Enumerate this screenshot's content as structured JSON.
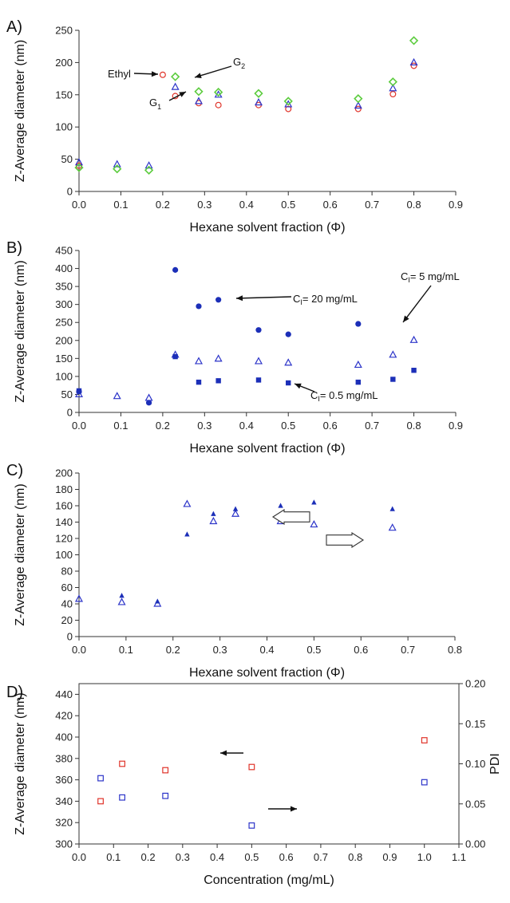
{
  "chart_data": [
    {
      "panel_label": "A)",
      "type": "scatter",
      "xlabel": "Hexane solvent fraction (Φ)",
      "ylabel": "Z-Average diameter (nm)",
      "xlim": [
        0,
        0.9
      ],
      "ylim": [
        0,
        250
      ],
      "x_ticks": [
        "0.0",
        "0.1",
        "0.2",
        "0.3",
        "0.4",
        "0.5",
        "0.6",
        "0.7",
        "0.8",
        "0.9"
      ],
      "y_ticks": [
        "0",
        "50",
        "100",
        "150",
        "200",
        "250"
      ],
      "annotations": [
        "Ethyl",
        "G",
        "1",
        "G",
        "2"
      ],
      "series": [
        {
          "marker": "open-circle",
          "color": "#e0342a",
          "points": [
            [
              0.0,
              40
            ],
            [
              0.2,
              181
            ],
            [
              0.23,
              148
            ],
            [
              0.286,
              137
            ],
            [
              0.333,
              134
            ],
            [
              0.429,
              134
            ],
            [
              0.5,
              128
            ],
            [
              0.667,
              128
            ],
            [
              0.75,
              151
            ],
            [
              0.8,
              195
            ]
          ]
        },
        {
          "marker": "open-triangle",
          "color": "#2d35c9",
          "points": [
            [
              0.0,
              45
            ],
            [
              0.091,
              42
            ],
            [
              0.167,
              40
            ],
            [
              0.23,
              162
            ],
            [
              0.286,
              140
            ],
            [
              0.333,
              150
            ],
            [
              0.429,
              138
            ],
            [
              0.5,
              135
            ],
            [
              0.667,
              133
            ],
            [
              0.75,
              160
            ],
            [
              0.8,
              200
            ]
          ]
        },
        {
          "marker": "open-diamond",
          "color": "#5ccc3e",
          "points": [
            [
              0.0,
              37
            ],
            [
              0.091,
              35
            ],
            [
              0.167,
              33
            ],
            [
              0.23,
              178
            ],
            [
              0.286,
              155
            ],
            [
              0.333,
              154
            ],
            [
              0.429,
              152
            ],
            [
              0.5,
              140
            ],
            [
              0.667,
              144
            ],
            [
              0.75,
              170
            ],
            [
              0.8,
              234
            ]
          ]
        }
      ]
    },
    {
      "panel_label": "B)",
      "type": "scatter",
      "xlabel": "Hexane solvent fraction (Φ)",
      "ylabel": "Z-Average diameter (nm)",
      "xlim": [
        0,
        0.9
      ],
      "ylim": [
        0,
        450
      ],
      "x_ticks": [
        "0.0",
        "0.1",
        "0.2",
        "0.3",
        "0.4",
        "0.5",
        "0.6",
        "0.7",
        "0.8",
        "0.9"
      ],
      "y_ticks": [
        "0",
        "50",
        "100",
        "150",
        "200",
        "250",
        "300",
        "350",
        "400",
        "450"
      ],
      "annotations": [
        "C",
        "I",
        "= 20 mg/mL",
        "C",
        "I",
        "= 5 mg/mL",
        "C",
        "I",
        "= 0.5 mg/mL"
      ],
      "series": [
        {
          "marker": "filled-circle",
          "color": "#1c2fb8",
          "points": [
            [
              0.0,
              58
            ],
            [
              0.167,
              27
            ],
            [
              0.23,
              396
            ],
            [
              0.286,
              295
            ],
            [
              0.333,
              313
            ],
            [
              0.429,
              229
            ],
            [
              0.5,
              217
            ],
            [
              0.667,
              246
            ]
          ]
        },
        {
          "marker": "open-triangle",
          "color": "#2d35c9",
          "points": [
            [
              0.0,
              50
            ],
            [
              0.091,
              45
            ],
            [
              0.167,
              40
            ],
            [
              0.23,
              160
            ],
            [
              0.286,
              142
            ],
            [
              0.333,
              149
            ],
            [
              0.429,
              142
            ],
            [
              0.5,
              138
            ],
            [
              0.667,
              132
            ],
            [
              0.75,
              160
            ],
            [
              0.8,
              201
            ]
          ]
        },
        {
          "marker": "filled-square",
          "color": "#1c2fb8",
          "points": [
            [
              0.0,
              60
            ],
            [
              0.23,
              155
            ],
            [
              0.286,
              84
            ],
            [
              0.333,
              88
            ],
            [
              0.429,
              90
            ],
            [
              0.5,
              82
            ],
            [
              0.667,
              84
            ],
            [
              0.75,
              92
            ],
            [
              0.8,
              117
            ]
          ]
        }
      ]
    },
    {
      "panel_label": "C)",
      "type": "scatter",
      "xlabel": "Hexane solvent fraction (Φ)",
      "ylabel": "Z-Average diameter (nm)",
      "xlim": [
        0,
        0.8
      ],
      "ylim": [
        0,
        200
      ],
      "x_ticks": [
        "0.0",
        "0.1",
        "0.2",
        "0.3",
        "0.4",
        "0.5",
        "0.6",
        "0.7",
        "0.8"
      ],
      "y_ticks": [
        "0",
        "20",
        "40",
        "60",
        "80",
        "100",
        "120",
        "140",
        "160",
        "180",
        "200"
      ],
      "series": [
        {
          "marker": "open-triangle",
          "color": "#2d35c9",
          "points": [
            [
              0.0,
              46
            ],
            [
              0.091,
              42
            ],
            [
              0.167,
              40
            ],
            [
              0.23,
              162
            ],
            [
              0.286,
              141
            ],
            [
              0.333,
              150
            ],
            [
              0.429,
              141
            ],
            [
              0.5,
              137
            ],
            [
              0.667,
              133
            ]
          ]
        },
        {
          "marker": "filled-triangle",
          "color": "#1c2fb8",
          "points": [
            [
              0.091,
              50
            ],
            [
              0.167,
              43
            ],
            [
              0.23,
              125
            ],
            [
              0.286,
              150
            ],
            [
              0.333,
              156
            ],
            [
              0.429,
              160
            ],
            [
              0.5,
              164
            ],
            [
              0.667,
              156
            ]
          ]
        }
      ]
    },
    {
      "panel_label": "D)",
      "type": "scatter",
      "xlabel": "Concentration (mg/mL)",
      "ylabel": "Z-Average diameter (nm)",
      "y2label": "PDI",
      "xlim": [
        0,
        1.1
      ],
      "ylim": [
        300,
        450
      ],
      "y2lim": [
        0,
        0.2
      ],
      "x_ticks": [
        "0.0",
        "0.1",
        "0.2",
        "0.3",
        "0.4",
        "0.5",
        "0.6",
        "0.7",
        "0.8",
        "0.9",
        "1.0",
        "1.1"
      ],
      "y_ticks": [
        "300",
        "320",
        "340",
        "360",
        "380",
        "400",
        "420",
        "440"
      ],
      "y2_ticks": [
        "0.00",
        "0.05",
        "0.10",
        "0.15",
        "0.20"
      ],
      "series": [
        {
          "axis": "left",
          "marker": "open-square",
          "color": "#e0342a",
          "points": [
            [
              0.0625,
              340
            ],
            [
              0.125,
              375
            ],
            [
              0.25,
              369
            ],
            [
              0.5,
              372
            ],
            [
              1.0,
              397
            ]
          ]
        },
        {
          "axis": "right",
          "marker": "open-square",
          "color": "#2d35c9",
          "points": [
            [
              0.0625,
              0.082
            ],
            [
              0.125,
              0.058
            ],
            [
              0.25,
              0.06
            ],
            [
              0.5,
              0.023
            ],
            [
              1.0,
              0.077
            ]
          ]
        }
      ]
    }
  ]
}
